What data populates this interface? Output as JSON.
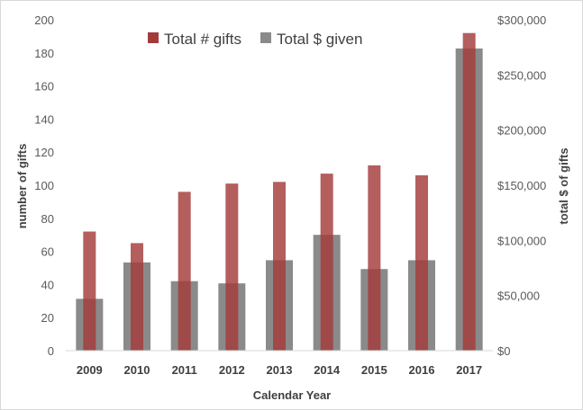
{
  "chart_data": {
    "type": "bar",
    "categories": [
      "2009",
      "2010",
      "2011",
      "2012",
      "2013",
      "2014",
      "2015",
      "2016",
      "2017"
    ],
    "series": [
      {
        "name": "Total # gifts",
        "axis": "left",
        "color": "#A33B3B",
        "values": [
          72,
          65,
          96,
          101,
          102,
          107,
          112,
          106,
          192
        ]
      },
      {
        "name": "Total $ given",
        "axis": "right",
        "color": "#8A8A8A",
        "values": [
          47000,
          80000,
          63000,
          61000,
          82000,
          105000,
          74000,
          82000,
          274000
        ]
      }
    ],
    "xlabel": "Calendar Year",
    "ylabel": "number of gifts",
    "y2label": "total $ of gifts",
    "ylim": [
      0,
      200
    ],
    "y2lim": [
      0,
      300000
    ],
    "yticks": [
      "0",
      "20",
      "40",
      "60",
      "80",
      "100",
      "120",
      "140",
      "160",
      "180",
      "200"
    ],
    "y2ticks": [
      "$0",
      "$50,000",
      "$100,000",
      "$150,000",
      "$200,000",
      "$250,000",
      "$300,000"
    ],
    "grid": false,
    "legend_position": "top"
  }
}
